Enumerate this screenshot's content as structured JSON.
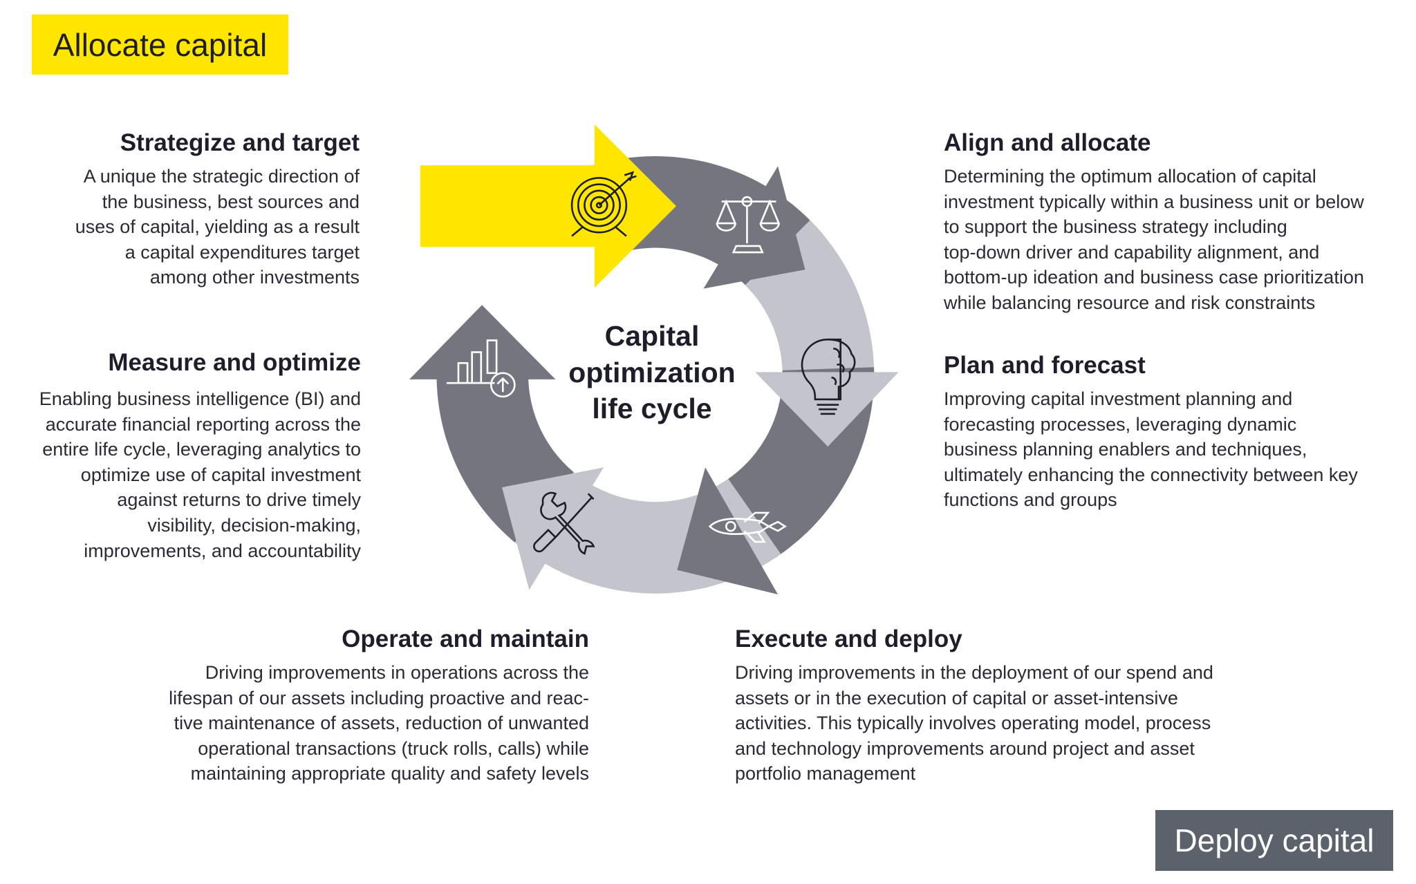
{
  "tags": {
    "allocate": "Allocate capital",
    "deploy": "Deploy capital"
  },
  "center_title": [
    "Capital",
    "optimization",
    "life cycle"
  ],
  "colors": {
    "yellow": "#ffe600",
    "dark_segment": "#757580",
    "light_segment": "#c3c4cc",
    "deploy_box": "#5c626b",
    "text": "#1e1e2a"
  },
  "stages": {
    "strategize": {
      "title": "Strategize and target",
      "icon": "target-icon",
      "lines": [
        "A unique the strategic direction of",
        "the business, best sources and",
        "uses of capital, yielding as a result",
        "a capital expenditures target",
        "among other investments"
      ]
    },
    "align": {
      "title": "Align and allocate",
      "icon": "scale-icon",
      "lines": [
        "Determining the optimum allocation of capital",
        "investment typically within a business unit or below",
        "to support the business strategy including",
        "top-down driver and capability alignment, and",
        "bottom-up ideation and business case prioritization",
        "while balancing resource and risk constraints"
      ]
    },
    "plan": {
      "title": "Plan and forecast",
      "icon": "brain-lightbulb-icon",
      "lines": [
        "Improving capital investment planning and",
        "forecasting processes, leveraging  dynamic",
        "business planning enablers and techniques,",
        "ultimately enhancing the connectivity between key",
        "functions and groups"
      ]
    },
    "execute": {
      "title": "Execute and deploy",
      "icon": "rocket-icon",
      "lines": [
        "Driving improvements in the deployment of our spend and",
        "assets or in the execution of capital or asset-intensive",
        "activities. This typically involves operating model, process",
        "and technology improvements around project and asset",
        "portfolio management"
      ]
    },
    "operate": {
      "title": "Operate and maintain",
      "icon": "wrench-screwdriver-icon",
      "lines": [
        "Driving improvements in operations across the",
        "lifespan of our assets including proactive and reac-",
        "tive maintenance of assets, reduction of unwanted",
        "operational transactions (truck rolls, calls) while",
        "maintaining appropriate quality and safety levels"
      ]
    },
    "measure": {
      "title": "Measure and optimize",
      "icon": "bar-chart-up-icon",
      "lines": [
        "Enabling business intelligence (BI) and",
        "accurate financial reporting across the",
        "entire life cycle, leveraging analytics to",
        "optimize use of capital investment",
        "against returns to drive timely",
        "visibility, decision-making,",
        "improvements, and accountability"
      ]
    }
  }
}
